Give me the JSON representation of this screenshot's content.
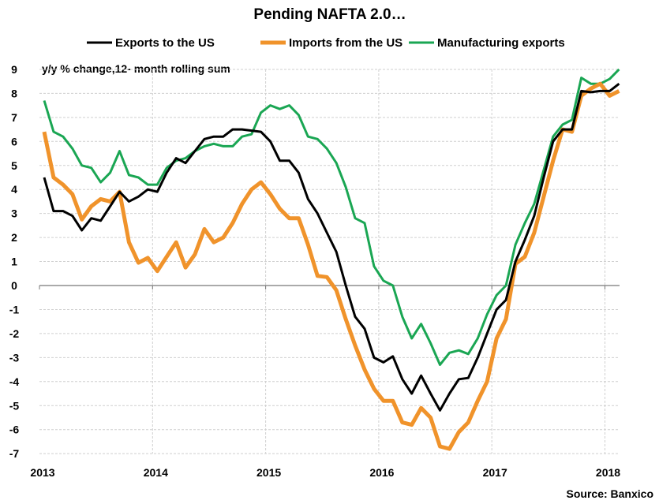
{
  "chart_data": {
    "type": "line",
    "title": "Pending NAFTA 2.0…",
    "annotation": "y/y % change,12- month rolling sum",
    "source": "Source: Banxico",
    "xlabel": "",
    "ylabel": "",
    "ylim": [
      -7,
      9
    ],
    "xlim": [
      2013,
      2018.2
    ],
    "grid": true,
    "legend_position": "top",
    "x_tick_labels": [
      "2013",
      "2014",
      "2015",
      "2016",
      "2017",
      "2018"
    ],
    "y_tick_labels": [
      "9",
      "8",
      "7",
      "6",
      "5",
      "4",
      "3",
      "2",
      "1",
      "0",
      "-1",
      "-2",
      "-3",
      "-4",
      "-5",
      "-6",
      "-7"
    ],
    "negative_tick_color": "#e00000",
    "x_start": "2013-01",
    "frequency": "monthly",
    "series": [
      {
        "name": "Exports to the US",
        "color": "#000000",
        "values": [
          4.5,
          3.1,
          3.1,
          2.9,
          2.3,
          2.8,
          2.7,
          3.3,
          3.9,
          3.5,
          3.7,
          4.0,
          3.9,
          4.7,
          5.3,
          5.1,
          5.6,
          6.1,
          6.2,
          6.2,
          6.5,
          6.5,
          6.45,
          6.4,
          6.0,
          5.2,
          5.2,
          4.7,
          3.6,
          3.0,
          2.2,
          1.4,
          0.0,
          -1.3,
          -1.8,
          -3.0,
          -3.2,
          -2.95,
          -3.9,
          -4.5,
          -3.75,
          -4.5,
          -5.2,
          -4.5,
          -3.9,
          -3.85,
          -3.0,
          -2.0,
          -1.0,
          -0.6,
          1.0,
          1.9,
          2.9,
          4.5,
          6.0,
          6.5,
          6.5,
          8.1,
          8.05,
          8.1,
          8.1,
          8.4
        ]
      },
      {
        "name": "Imports from the US",
        "color": "#f0932b",
        "values": [
          6.4,
          4.5,
          4.2,
          3.8,
          2.75,
          3.3,
          3.6,
          3.5,
          3.9,
          1.8,
          0.95,
          1.15,
          0.6,
          1.2,
          1.8,
          0.75,
          1.3,
          2.35,
          1.8,
          2.0,
          2.6,
          3.4,
          4.0,
          4.3,
          3.8,
          3.2,
          2.8,
          2.8,
          1.7,
          0.4,
          0.35,
          -0.2,
          -1.4,
          -2.5,
          -3.5,
          -4.3,
          -4.8,
          -4.8,
          -5.7,
          -5.8,
          -5.1,
          -5.5,
          -6.7,
          -6.8,
          -6.1,
          -5.7,
          -4.8,
          -4.0,
          -2.2,
          -1.4,
          0.9,
          1.2,
          2.2,
          3.7,
          5.2,
          6.5,
          6.4,
          7.9,
          8.2,
          8.4,
          7.9,
          8.1
        ]
      },
      {
        "name": "Manufacturing exports",
        "color": "#1aa653",
        "values": [
          7.7,
          6.4,
          6.2,
          5.7,
          5.0,
          4.9,
          4.3,
          4.7,
          5.6,
          4.6,
          4.5,
          4.2,
          4.2,
          4.9,
          5.2,
          5.3,
          5.6,
          5.8,
          5.9,
          5.8,
          5.8,
          6.2,
          6.3,
          7.2,
          7.5,
          7.35,
          7.5,
          7.1,
          6.2,
          6.1,
          5.7,
          5.1,
          4.1,
          2.8,
          2.6,
          0.8,
          0.2,
          0.0,
          -1.3,
          -2.2,
          -1.6,
          -2.4,
          -3.3,
          -2.8,
          -2.7,
          -2.85,
          -2.2,
          -1.2,
          -0.4,
          0.0,
          1.7,
          2.6,
          3.4,
          4.8,
          6.2,
          6.7,
          6.9,
          8.65,
          8.4,
          8.4,
          8.6,
          9.0
        ]
      }
    ]
  }
}
